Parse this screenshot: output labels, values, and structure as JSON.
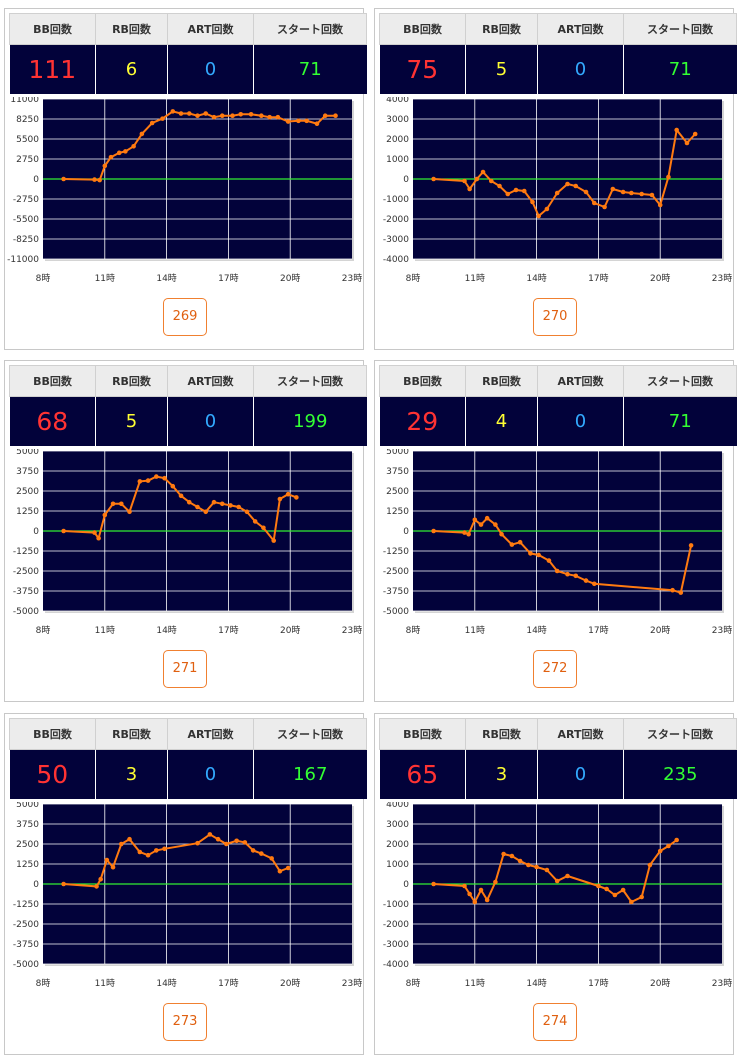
{
  "headers": {
    "bb": "BB回数",
    "rb": "RB回数",
    "art": "ART回数",
    "start": "スタート回数"
  },
  "machines": [
    {
      "number": "269",
      "bb": "111",
      "rb": "6",
      "art": "0",
      "start": "71",
      "chart_data": {
        "type": "line",
        "ylim": [
          -11000,
          11000
        ],
        "yticks": [
          11000,
          8250,
          5500,
          2750,
          0,
          -2750,
          -5500,
          -8250,
          -11000
        ],
        "x_labels": [
          "8時",
          "11時",
          "14時",
          "17時",
          "20時",
          "23時"
        ],
        "xlim": [
          8,
          23
        ],
        "points": [
          [
            9,
            0
          ],
          [
            10.5,
            -80
          ],
          [
            10.75,
            -150
          ],
          [
            11,
            1800
          ],
          [
            11.3,
            3000
          ],
          [
            11.7,
            3600
          ],
          [
            12,
            3800
          ],
          [
            12.4,
            4500
          ],
          [
            12.8,
            6200
          ],
          [
            13.3,
            7700
          ],
          [
            13.8,
            8300
          ],
          [
            14.3,
            9300
          ],
          [
            14.7,
            9000
          ],
          [
            15.1,
            9000
          ],
          [
            15.5,
            8700
          ],
          [
            15.9,
            9000
          ],
          [
            16.3,
            8500
          ],
          [
            16.7,
            8700
          ],
          [
            17.2,
            8700
          ],
          [
            17.6,
            8900
          ],
          [
            18.1,
            8900
          ],
          [
            18.6,
            8700
          ],
          [
            19,
            8500
          ],
          [
            19.4,
            8500
          ],
          [
            19.9,
            7900
          ],
          [
            20.4,
            8000
          ],
          [
            20.8,
            8000
          ],
          [
            21.3,
            7600
          ],
          [
            21.7,
            8700
          ],
          [
            22.2,
            8700
          ]
        ]
      }
    },
    {
      "number": "270",
      "bb": "75",
      "rb": "5",
      "art": "0",
      "start": "71",
      "chart_data": {
        "type": "line",
        "ylim": [
          -4000,
          4000
        ],
        "yticks": [
          4000,
          3000,
          2000,
          1000,
          0,
          -1000,
          -2000,
          -3000,
          -4000
        ],
        "x_labels": [
          "8時",
          "11時",
          "14時",
          "17時",
          "20時",
          "23時"
        ],
        "xlim": [
          8,
          23
        ],
        "points": [
          [
            9,
            0
          ],
          [
            10.5,
            -100
          ],
          [
            10.75,
            -500
          ],
          [
            11.1,
            0
          ],
          [
            11.4,
            350
          ],
          [
            11.8,
            -100
          ],
          [
            12.2,
            -350
          ],
          [
            12.6,
            -750
          ],
          [
            13,
            -550
          ],
          [
            13.4,
            -600
          ],
          [
            13.8,
            -1150
          ],
          [
            14.1,
            -1850
          ],
          [
            14.5,
            -1500
          ],
          [
            15,
            -700
          ],
          [
            15.5,
            -250
          ],
          [
            15.9,
            -350
          ],
          [
            16.4,
            -650
          ],
          [
            16.8,
            -1200
          ],
          [
            17.3,
            -1400
          ],
          [
            17.7,
            -500
          ],
          [
            18.2,
            -650
          ],
          [
            18.6,
            -700
          ],
          [
            19.1,
            -750
          ],
          [
            19.6,
            -800
          ],
          [
            20,
            -1300
          ],
          [
            20.4,
            100
          ],
          [
            20.8,
            2450
          ],
          [
            21.3,
            1800
          ],
          [
            21.7,
            2250
          ]
        ]
      }
    },
    {
      "number": "271",
      "bb": "68",
      "rb": "5",
      "art": "0",
      "start": "199",
      "chart_data": {
        "type": "line",
        "ylim": [
          -5000,
          5000
        ],
        "yticks": [
          5000,
          3750,
          2500,
          1250,
          0,
          -1250,
          -2500,
          -3750,
          -5000
        ],
        "x_labels": [
          "8時",
          "11時",
          "14時",
          "17時",
          "20時",
          "23時"
        ],
        "xlim": [
          8,
          23
        ],
        "points": [
          [
            9,
            0
          ],
          [
            10.5,
            -100
          ],
          [
            10.7,
            -450
          ],
          [
            11,
            1000
          ],
          [
            11.4,
            1700
          ],
          [
            11.8,
            1700
          ],
          [
            12.2,
            1200
          ],
          [
            12.7,
            3100
          ],
          [
            13.1,
            3150
          ],
          [
            13.5,
            3400
          ],
          [
            13.9,
            3300
          ],
          [
            14.3,
            2800
          ],
          [
            14.7,
            2200
          ],
          [
            15.1,
            1800
          ],
          [
            15.5,
            1500
          ],
          [
            15.9,
            1200
          ],
          [
            16.3,
            1800
          ],
          [
            16.7,
            1700
          ],
          [
            17.1,
            1600
          ],
          [
            17.5,
            1500
          ],
          [
            17.9,
            1200
          ],
          [
            18.3,
            600
          ],
          [
            18.7,
            200
          ],
          [
            19.2,
            -600
          ],
          [
            19.5,
            2000
          ],
          [
            19.9,
            2300
          ],
          [
            20.3,
            2100
          ]
        ]
      }
    },
    {
      "number": "272",
      "bb": "29",
      "rb": "4",
      "art": "0",
      "start": "71",
      "chart_data": {
        "type": "line",
        "ylim": [
          -5000,
          5000
        ],
        "yticks": [
          5000,
          3750,
          2500,
          1250,
          0,
          -1250,
          -2500,
          -3750,
          -5000
        ],
        "x_labels": [
          "8時",
          "11時",
          "14時",
          "17時",
          "20時",
          "23時"
        ],
        "xlim": [
          8,
          23
        ],
        "points": [
          [
            9,
            0
          ],
          [
            10.5,
            -100
          ],
          [
            10.7,
            -200
          ],
          [
            11,
            700
          ],
          [
            11.3,
            400
          ],
          [
            11.6,
            800
          ],
          [
            12,
            400
          ],
          [
            12.3,
            -200
          ],
          [
            12.8,
            -850
          ],
          [
            13.2,
            -700
          ],
          [
            13.7,
            -1400
          ],
          [
            14.1,
            -1500
          ],
          [
            14.6,
            -1850
          ],
          [
            15,
            -2500
          ],
          [
            15.5,
            -2700
          ],
          [
            15.9,
            -2800
          ],
          [
            16.4,
            -3100
          ],
          [
            16.8,
            -3300
          ],
          [
            20.6,
            -3700
          ],
          [
            21,
            -3850
          ],
          [
            21.5,
            -900
          ]
        ]
      }
    },
    {
      "number": "273",
      "bb": "50",
      "rb": "3",
      "art": "0",
      "start": "167",
      "chart_data": {
        "type": "line",
        "ylim": [
          -5000,
          5000
        ],
        "yticks": [
          5000,
          3750,
          2500,
          1250,
          0,
          -1250,
          -2500,
          -3750,
          -5000
        ],
        "x_labels": [
          "8時",
          "11時",
          "14時",
          "17時",
          "20時",
          "23時"
        ],
        "xlim": [
          8,
          23
        ],
        "points": [
          [
            9,
            0
          ],
          [
            10.6,
            -150
          ],
          [
            10.8,
            300
          ],
          [
            11.1,
            1500
          ],
          [
            11.4,
            1050
          ],
          [
            11.8,
            2500
          ],
          [
            12.2,
            2800
          ],
          [
            12.7,
            2000
          ],
          [
            13.1,
            1800
          ],
          [
            13.5,
            2100
          ],
          [
            13.9,
            2200
          ],
          [
            15.5,
            2550
          ],
          [
            16.1,
            3100
          ],
          [
            16.5,
            2800
          ],
          [
            16.9,
            2500
          ],
          [
            17.4,
            2700
          ],
          [
            17.8,
            2600
          ],
          [
            18.2,
            2100
          ],
          [
            18.6,
            1900
          ],
          [
            19.1,
            1600
          ],
          [
            19.5,
            800
          ],
          [
            19.9,
            1000
          ]
        ]
      }
    },
    {
      "number": "274",
      "bb": "65",
      "rb": "3",
      "art": "0",
      "start": "235",
      "chart_data": {
        "type": "line",
        "ylim": [
          -4000,
          4000
        ],
        "yticks": [
          4000,
          3000,
          2000,
          1000,
          0,
          -1000,
          -2000,
          -3000,
          -4000
        ],
        "x_labels": [
          "8時",
          "11時",
          "14時",
          "17時",
          "20時",
          "23時"
        ],
        "xlim": [
          8,
          23
        ],
        "points": [
          [
            9,
            0
          ],
          [
            10.5,
            -100
          ],
          [
            10.75,
            -500
          ],
          [
            11,
            -900
          ],
          [
            11.3,
            -300
          ],
          [
            11.6,
            -800
          ],
          [
            12,
            100
          ],
          [
            12.4,
            1500
          ],
          [
            12.8,
            1400
          ],
          [
            13.2,
            1150
          ],
          [
            13.6,
            950
          ],
          [
            14,
            850
          ],
          [
            14.5,
            700
          ],
          [
            15,
            150
          ],
          [
            15.5,
            400
          ],
          [
            17,
            -100
          ],
          [
            17.4,
            -250
          ],
          [
            17.8,
            -550
          ],
          [
            18.2,
            -300
          ],
          [
            18.6,
            -900
          ],
          [
            19.1,
            -650
          ],
          [
            19.5,
            950
          ],
          [
            20,
            1650
          ],
          [
            20.4,
            1900
          ],
          [
            20.8,
            2200
          ]
        ]
      }
    }
  ]
}
